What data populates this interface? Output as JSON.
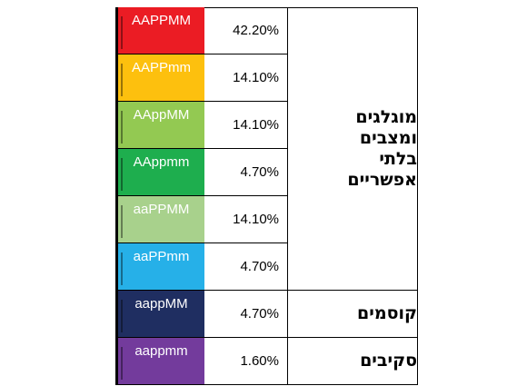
{
  "rows": [
    {
      "genotype": "AAPPMM",
      "percent": "42.20%",
      "color": "#EB1C24"
    },
    {
      "genotype": "AAPPmm",
      "percent": "14.10%",
      "color": "#FDC00E"
    },
    {
      "genotype": "AAppMM",
      "percent": "14.10%",
      "color": "#93C952"
    },
    {
      "genotype": "AAppmm",
      "percent": "4.70%",
      "color": "#1EAE4E"
    },
    {
      "genotype": "aaPPMM",
      "percent": "14.10%",
      "color": "#A8D18C"
    },
    {
      "genotype": "aaPPmm",
      "percent": "4.70%",
      "color": "#26B0E8"
    },
    {
      "genotype": "aappMM",
      "percent": "4.70%",
      "color": "#1F2E61"
    },
    {
      "genotype": "aappmm",
      "percent": "1.60%",
      "color": "#733B9C"
    }
  ],
  "groups": [
    {
      "label": "מוגלגים ומצבים בלתי אפשריים"
    },
    {
      "label": "קוסמים"
    },
    {
      "label": "סקיבים"
    }
  ]
}
